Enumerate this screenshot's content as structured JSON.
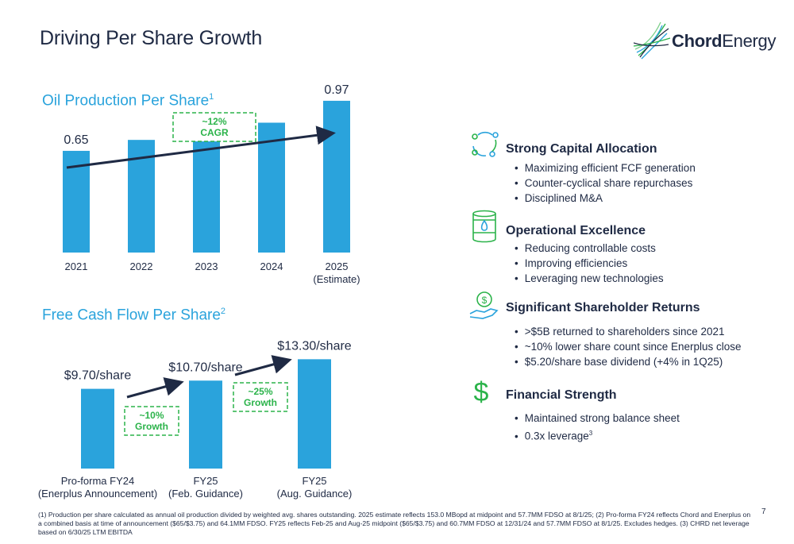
{
  "title": "Driving Per Share Growth",
  "logo": {
    "word1": "Chord",
    "word2": "Energy"
  },
  "page_number": "7",
  "chart_data": [
    {
      "type": "bar",
      "title": "Oil Production Per Share",
      "title_footnote": "1",
      "categories": [
        [
          "2021"
        ],
        [
          "2022"
        ],
        [
          "2023"
        ],
        [
          "2024"
        ],
        [
          "2025",
          "(Estimate)"
        ]
      ],
      "values": [
        0.65,
        0.72,
        0.77,
        0.83,
        0.97
      ],
      "data_labels": [
        "0.65",
        "",
        "",
        "",
        "0.97"
      ],
      "badge": [
        "~12%",
        "CAGR"
      ],
      "color": "#2aa3dc"
    },
    {
      "type": "bar",
      "title": "Free Cash Flow Per Share",
      "title_footnote": "2",
      "categories": [
        [
          "Pro-forma FY24",
          "(Enerplus Announcement)"
        ],
        [
          "FY25",
          "(Feb. Guidance)"
        ],
        [
          "FY25",
          "(Aug. Guidance)"
        ]
      ],
      "values": [
        9.7,
        10.7,
        13.3
      ],
      "data_labels": [
        "$9.70/share",
        "$10.70/share",
        "$13.30/share"
      ],
      "badges": [
        [
          "~10%",
          "Growth"
        ],
        [
          "~25%",
          "Growth"
        ]
      ],
      "color": "#2aa3dc"
    }
  ],
  "features": [
    {
      "icon": "cycle-arrows-icon",
      "title": "Strong Capital Allocation",
      "items": [
        "Maximizing efficient FCF generation",
        "Counter-cyclical share repurchases",
        "Disciplined M&A"
      ]
    },
    {
      "icon": "oil-barrel-icon",
      "title": "Operational Excellence",
      "items": [
        "Reducing controllable costs",
        "Improving efficiencies",
        "Leveraging new technologies"
      ]
    },
    {
      "icon": "money-hand-icon",
      "title": "Significant Shareholder Returns",
      "items": [
        ">$5B returned to shareholders since 2021",
        "~10% lower share count since Enerplus close",
        "$5.20/share base dividend (+4% in 1Q25)"
      ]
    },
    {
      "icon": "dollar-sign-icon",
      "title": "Financial Strength",
      "items": [
        "Maintained strong balance sheet",
        "0.3x leverage"
      ],
      "last_item_footnote": "3"
    }
  ],
  "footnote": "(1) Production per share calculated as annual oil production divided by weighted avg. shares outstanding. 2025 estimate reflects 153.0 MBopd at midpoint and 57.7MM FDSO at 8/1/25; (2) Pro-forma FY24 reflects Chord and Enerplus on a combined basis at time of announcement ($65/$3.75) and 64.1MM FDSO. FY25 reflects Feb-25 and Aug-25 midpoint ($65/$3.75) and 60.7MM FDSO at 12/31/24 and 57.7MM FDSO at 8/1/25. Excludes hedges. (3) CHRD net leverage based on 6/30/25 LTM EBITDA",
  "colors": {
    "accent": "#2aa3dc",
    "navy": "#1f2a44",
    "green": "#2bb34a"
  }
}
